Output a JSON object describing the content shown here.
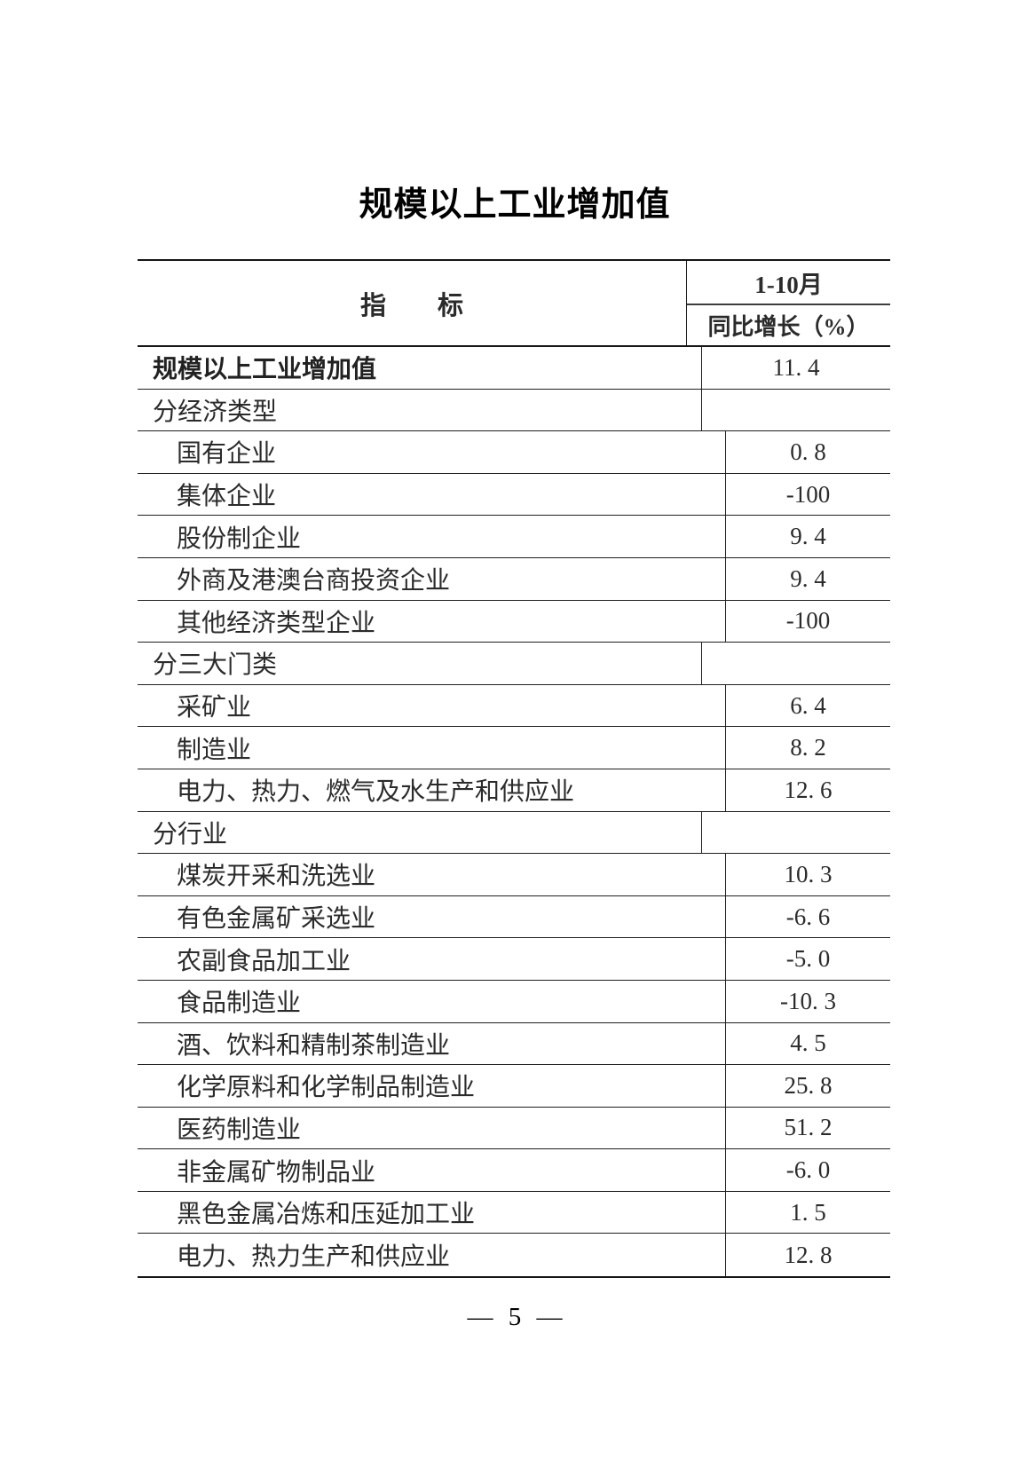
{
  "page": {
    "title": "规模以上工业增加值",
    "footer": "— 5 —"
  },
  "table": {
    "header": {
      "indicator_label": "指　　标",
      "period_label": "1-10月",
      "measure_label": "同比增长（%）"
    },
    "rows": [
      {
        "label": "规模以上工业增加值",
        "value": "11. 4",
        "indent": 0,
        "bold": true
      },
      {
        "label": "分经济类型",
        "value": "",
        "indent": 0,
        "bold": false
      },
      {
        "label": "国有企业",
        "value": "0. 8",
        "indent": 1,
        "bold": false
      },
      {
        "label": "集体企业",
        "value": "-100",
        "indent": 1,
        "bold": false
      },
      {
        "label": "股份制企业",
        "value": "9. 4",
        "indent": 1,
        "bold": false
      },
      {
        "label": "外商及港澳台商投资企业",
        "value": "9. 4",
        "indent": 1,
        "bold": false
      },
      {
        "label": "其他经济类型企业",
        "value": "-100",
        "indent": 1,
        "bold": false
      },
      {
        "label": "分三大门类",
        "value": "",
        "indent": 0,
        "bold": false
      },
      {
        "label": "采矿业",
        "value": "6. 4",
        "indent": 1,
        "bold": false
      },
      {
        "label": "制造业",
        "value": "8. 2",
        "indent": 1,
        "bold": false
      },
      {
        "label": "电力、热力、燃气及水生产和供应业",
        "value": "12. 6",
        "indent": 1,
        "bold": false
      },
      {
        "label": "分行业",
        "value": "",
        "indent": 0,
        "bold": false
      },
      {
        "label": "煤炭开采和洗选业",
        "value": "10. 3",
        "indent": 1,
        "bold": false
      },
      {
        "label": "有色金属矿采选业",
        "value": "-6. 6",
        "indent": 1,
        "bold": false
      },
      {
        "label": "农副食品加工业",
        "value": "-5. 0",
        "indent": 1,
        "bold": false
      },
      {
        "label": "食品制造业",
        "value": "-10. 3",
        "indent": 1,
        "bold": false
      },
      {
        "label": "酒、饮料和精制茶制造业",
        "value": "4. 5",
        "indent": 1,
        "bold": false
      },
      {
        "label": "化学原料和化学制品制造业",
        "value": "25. 8",
        "indent": 1,
        "bold": false
      },
      {
        "label": "医药制造业",
        "value": "51. 2",
        "indent": 1,
        "bold": false
      },
      {
        "label": "非金属矿物制品业",
        "value": "-6. 0",
        "indent": 1,
        "bold": false
      },
      {
        "label": "黑色金属冶炼和压延加工业",
        "value": "1. 5",
        "indent": 1,
        "bold": false
      },
      {
        "label": "电力、热力生产和供应业",
        "value": "12. 8",
        "indent": 1,
        "bold": false
      }
    ]
  }
}
